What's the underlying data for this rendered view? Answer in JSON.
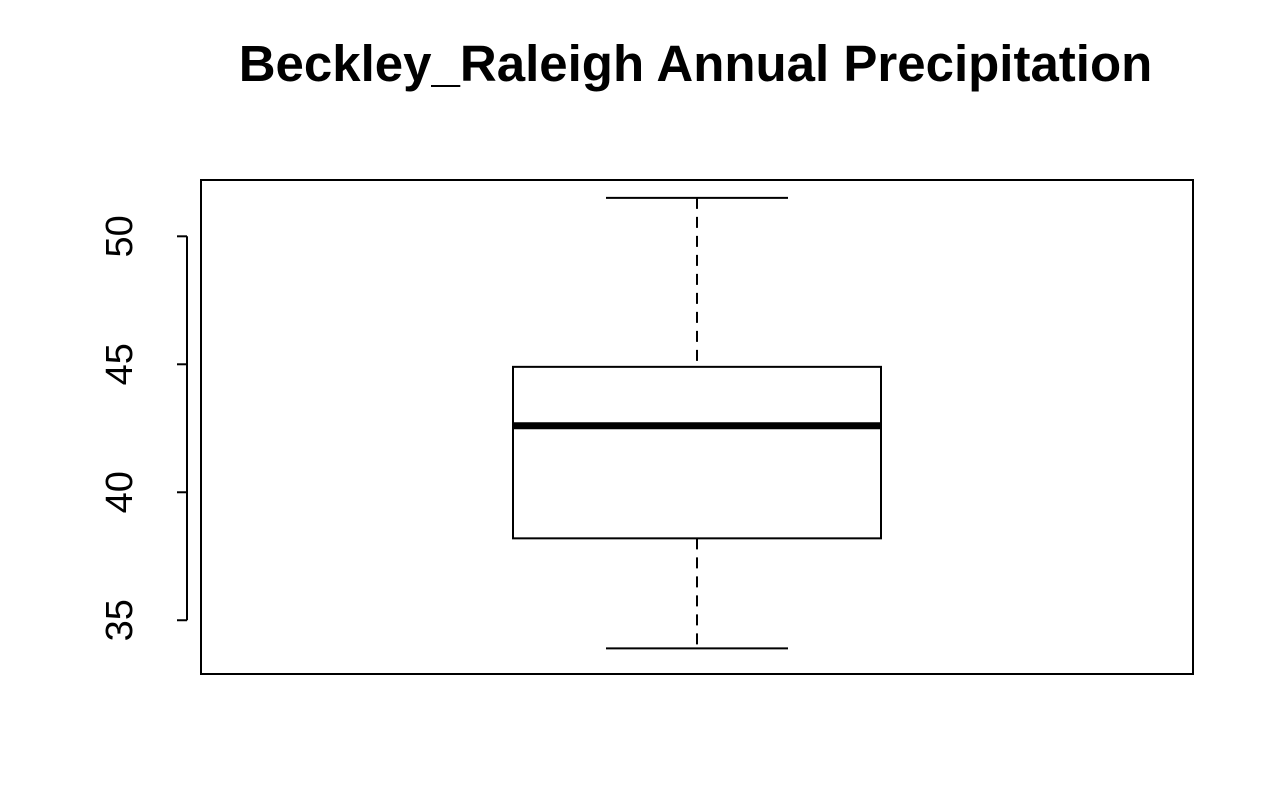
{
  "chart_data": {
    "type": "boxplot",
    "title": "Beckley_Raleigh Annual Precipitation",
    "xlabel": "",
    "ylabel": "",
    "ylim": [
      32.9,
      52.2
    ],
    "y_ticks": [
      35,
      40,
      45,
      50
    ],
    "y_tick_labels": [
      "35",
      "40",
      "45",
      "50"
    ],
    "grid": false,
    "series": [
      {
        "min": 33.9,
        "q1": 38.2,
        "median": 42.6,
        "q3": 44.9,
        "max": 51.5
      }
    ]
  }
}
